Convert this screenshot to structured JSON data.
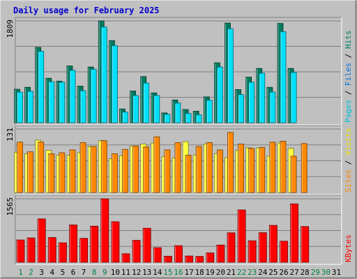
{
  "chart_data": {
    "type": "bar",
    "title": "Daily usage for February 2025",
    "days": [
      "1",
      "2",
      "3",
      "4",
      "5",
      "6",
      "7",
      "8",
      "9",
      "10",
      "11",
      "12",
      "13",
      "14",
      "15",
      "16",
      "17",
      "18",
      "19",
      "20",
      "21",
      "22",
      "23",
      "24",
      "25",
      "26",
      "27",
      "28",
      "29",
      "30",
      "31"
    ],
    "weekend_days": [
      1,
      2,
      8,
      9,
      15,
      16,
      22,
      23,
      29,
      30
    ],
    "panels": [
      {
        "id": "top",
        "ymax_label": "1809",
        "ymax": 1809,
        "legend": [
          {
            "text": "Pages",
            "color": "#00c0d8"
          },
          {
            "text": " / ",
            "color": "#000000"
          },
          {
            "text": "Files",
            "color": "#0070d8"
          },
          {
            "text": " / ",
            "color": "#000000"
          },
          {
            "text": "Hits",
            "color": "#008060"
          }
        ],
        "series": [
          {
            "name": "Hits",
            "color": "#007a5e",
            "values": [
              595,
              630,
              1340,
              790,
              740,
              1010,
              650,
              990,
              1809,
              1460,
              245,
              565,
              820,
              530,
              175,
              405,
              235,
              205,
              460,
              1065,
              1770,
              590,
              810,
              965,
              630,
              1765,
              965,
              0,
              0,
              0,
              null
            ]
          },
          {
            "name": "Files",
            "color": "#00e0f8",
            "values": [
              545,
              560,
              1270,
              730,
              720,
              930,
              570,
              950,
              1700,
              1370,
              190,
              485,
              705,
              485,
              150,
              350,
              165,
              140,
              400,
              990,
              1670,
              500,
              720,
              880,
              545,
              1620,
              895,
              0,
              0,
              0,
              null
            ]
          }
        ]
      },
      {
        "id": "middle",
        "ymax_label": "131",
        "ymax": 131,
        "legend": [
          {
            "text": "Sites",
            "color": "#ff8800"
          },
          {
            "text": " / ",
            "color": "#000000"
          },
          {
            "text": "Visits",
            "color": "#f0e000"
          }
        ],
        "series": [
          {
            "name": "Visits",
            "color": "#ffff40",
            "values": [
              83,
              80,
              108,
              87,
              77,
              77,
              82,
              95,
              107,
              70,
              76,
              96,
              100,
              102,
              74,
              71,
              105,
              77,
              100,
              80,
              72,
              87,
              92,
              92,
              75,
              102,
              91,
              0,
              0,
              0,
              null
            ]
          },
          {
            "name": "Sites",
            "color": "#ff8800",
            "values": [
              104,
              84,
              104,
              80,
              82,
              88,
              103,
              95,
              107,
              80,
              89,
              96,
              94,
              115,
              88,
              103,
              77,
              95,
              103,
              88,
              124,
              100,
              91,
              93,
              104,
              106,
              75,
              101,
              0,
              0,
              null
            ]
          }
        ]
      },
      {
        "id": "bottom",
        "ymax_label": "1565",
        "ymax": 1565,
        "legend": [
          {
            "text": "KBytes",
            "color": "#ff0000"
          }
        ],
        "series": [
          {
            "name": "KBytes",
            "color": "#ff0000",
            "values": [
              550,
              600,
              1070,
              610,
              480,
              920,
              590,
              890,
              1565,
              1000,
              210,
              540,
              840,
              360,
              150,
              410,
              155,
              145,
              230,
              425,
              725,
              1290,
              530,
              730,
              910,
              520,
              1440,
              880,
              0,
              0,
              null
            ]
          }
        ]
      }
    ]
  }
}
